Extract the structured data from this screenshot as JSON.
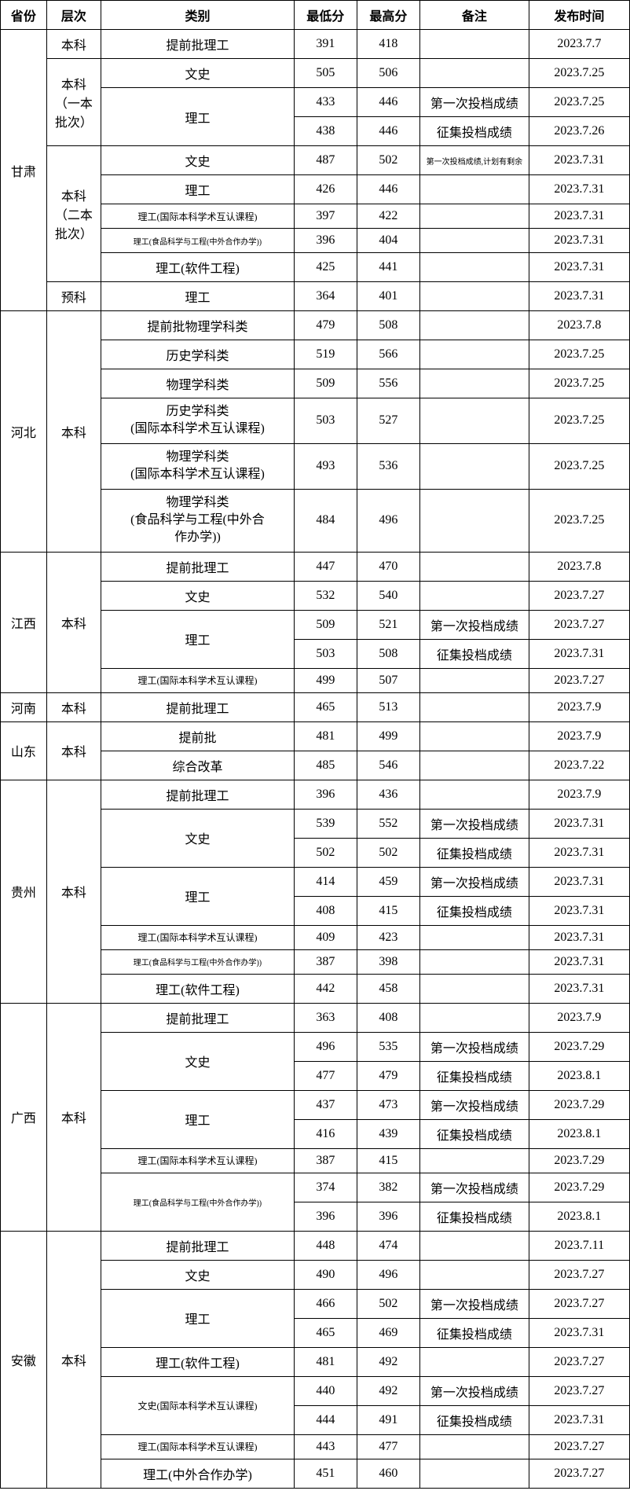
{
  "headers": {
    "province": "省份",
    "level": "层次",
    "category": "类别",
    "min": "最低分",
    "max": "最高分",
    "remark": "备注",
    "date": "发布时间"
  },
  "provinces": [
    {
      "name": "甘肃",
      "levels": [
        {
          "name": "本科",
          "rows": [
            {
              "category": "提前批理工",
              "min": "391",
              "max": "418",
              "remark": "",
              "date": "2023.7.7"
            }
          ]
        },
        {
          "name": "本科\n（一本\n批次）",
          "rows": [
            {
              "category": "文史",
              "min": "505",
              "max": "506",
              "remark": "",
              "date": "2023.7.25"
            },
            {
              "category": "理工",
              "categoryRowspan": 2,
              "min": "433",
              "max": "446",
              "remark": "第一次投档成绩",
              "date": "2023.7.25"
            },
            {
              "min": "438",
              "max": "446",
              "remark": "征集投档成绩",
              "date": "2023.7.26"
            }
          ]
        },
        {
          "name": "本科\n（二本\n批次）",
          "rows": [
            {
              "category": "文史",
              "min": "487",
              "max": "502",
              "remark": "第一次投档成绩,计划有剩余",
              "remarkClass": "xsmall-text",
              "date": "2023.7.31"
            },
            {
              "category": "理工",
              "min": "426",
              "max": "446",
              "remark": "",
              "date": "2023.7.31"
            },
            {
              "category": "理工(国际本科学术互认课程)",
              "categoryClass": "small-text",
              "min": "397",
              "max": "422",
              "remark": "",
              "date": "2023.7.31"
            },
            {
              "category": "理工(食品科学与工程(中外合作办学))",
              "categoryClass": "xsmall-text",
              "min": "396",
              "max": "404",
              "remark": "",
              "date": "2023.7.31"
            },
            {
              "category": "理工(软件工程)",
              "min": "425",
              "max": "441",
              "remark": "",
              "date": "2023.7.31"
            }
          ]
        },
        {
          "name": "预科",
          "rows": [
            {
              "category": "理工",
              "min": "364",
              "max": "401",
              "remark": "",
              "date": "2023.7.31"
            }
          ]
        }
      ]
    },
    {
      "name": "河北",
      "levels": [
        {
          "name": "本科",
          "rows": [
            {
              "category": "提前批物理学科类",
              "min": "479",
              "max": "508",
              "remark": "",
              "date": "2023.7.8"
            },
            {
              "category": "历史学科类",
              "min": "519",
              "max": "566",
              "remark": "",
              "date": "2023.7.25"
            },
            {
              "category": "物理学科类",
              "min": "509",
              "max": "556",
              "remark": "",
              "date": "2023.7.25"
            },
            {
              "category": "历史学科类\n(国际本科学术互认课程)",
              "categoryClass": "multiline",
              "min": "503",
              "max": "527",
              "remark": "",
              "date": "2023.7.25"
            },
            {
              "category": "物理学科类\n(国际本科学术互认课程)",
              "categoryClass": "multiline",
              "min": "493",
              "max": "536",
              "remark": "",
              "date": "2023.7.25"
            },
            {
              "category": "物理学科类\n(食品科学与工程(中外合\n作办学))",
              "categoryClass": "multiline",
              "min": "484",
              "max": "496",
              "remark": "",
              "date": "2023.7.25"
            }
          ]
        }
      ]
    },
    {
      "name": "江西",
      "levels": [
        {
          "name": "本科",
          "rows": [
            {
              "category": "提前批理工",
              "min": "447",
              "max": "470",
              "remark": "",
              "date": "2023.7.8"
            },
            {
              "category": "文史",
              "min": "532",
              "max": "540",
              "remark": "",
              "date": "2023.7.27"
            },
            {
              "category": "理工",
              "categoryRowspan": 2,
              "min": "509",
              "max": "521",
              "remark": "第一次投档成绩",
              "date": "2023.7.27"
            },
            {
              "min": "503",
              "max": "508",
              "remark": "征集投档成绩",
              "date": "2023.7.31"
            },
            {
              "category": "理工(国际本科学术互认课程)",
              "categoryClass": "small-text",
              "min": "499",
              "max": "507",
              "remark": "",
              "date": "2023.7.27"
            }
          ]
        }
      ]
    },
    {
      "name": "河南",
      "levels": [
        {
          "name": "本科",
          "rows": [
            {
              "category": "提前批理工",
              "min": "465",
              "max": "513",
              "remark": "",
              "date": "2023.7.9"
            }
          ]
        }
      ]
    },
    {
      "name": "山东",
      "levels": [
        {
          "name": "本科",
          "rows": [
            {
              "category": "提前批",
              "min": "481",
              "max": "499",
              "remark": "",
              "date": "2023.7.9"
            },
            {
              "category": "综合改革",
              "min": "485",
              "max": "546",
              "remark": "",
              "date": "2023.7.22"
            }
          ]
        }
      ]
    },
    {
      "name": "贵州",
      "levels": [
        {
          "name": "本科",
          "rows": [
            {
              "category": "提前批理工",
              "min": "396",
              "max": "436",
              "remark": "",
              "date": "2023.7.9"
            },
            {
              "category": "文史",
              "categoryRowspan": 2,
              "min": "539",
              "max": "552",
              "remark": "第一次投档成绩",
              "date": "2023.7.31"
            },
            {
              "min": "502",
              "max": "502",
              "remark": "征集投档成绩",
              "date": "2023.7.31"
            },
            {
              "category": "理工",
              "categoryRowspan": 2,
              "min": "414",
              "max": "459",
              "remark": "第一次投档成绩",
              "date": "2023.7.31"
            },
            {
              "min": "408",
              "max": "415",
              "remark": "征集投档成绩",
              "date": "2023.7.31"
            },
            {
              "category": "理工(国际本科学术互认课程)",
              "categoryClass": "small-text",
              "min": "409",
              "max": "423",
              "remark": "",
              "date": "2023.7.31"
            },
            {
              "category": "理工(食品科学与工程(中外合作办学))",
              "categoryClass": "xsmall-text",
              "min": "387",
              "max": "398",
              "remark": "",
              "date": "2023.7.31"
            },
            {
              "category": "理工(软件工程)",
              "min": "442",
              "max": "458",
              "remark": "",
              "date": "2023.7.31"
            }
          ]
        }
      ]
    },
    {
      "name": "广西",
      "levels": [
        {
          "name": "本科",
          "rows": [
            {
              "category": "提前批理工",
              "min": "363",
              "max": "408",
              "remark": "",
              "date": "2023.7.9"
            },
            {
              "category": "文史",
              "categoryRowspan": 2,
              "min": "496",
              "max": "535",
              "remark": "第一次投档成绩",
              "date": "2023.7.29"
            },
            {
              "min": "477",
              "max": "479",
              "remark": "征集投档成绩",
              "date": "2023.8.1"
            },
            {
              "category": "理工",
              "categoryRowspan": 2,
              "min": "437",
              "max": "473",
              "remark": "第一次投档成绩",
              "date": "2023.7.29"
            },
            {
              "min": "416",
              "max": "439",
              "remark": "征集投档成绩",
              "date": "2023.8.1"
            },
            {
              "category": "理工(国际本科学术互认课程)",
              "categoryClass": "small-text",
              "min": "387",
              "max": "415",
              "remark": "",
              "date": "2023.7.29"
            },
            {
              "category": "理工(食品科学与工程(中外合作办学))",
              "categoryClass": "xsmall-text",
              "categoryRowspan": 2,
              "min": "374",
              "max": "382",
              "remark": "第一次投档成绩",
              "date": "2023.7.29"
            },
            {
              "min": "396",
              "max": "396",
              "remark": "征集投档成绩",
              "date": "2023.8.1"
            }
          ]
        }
      ]
    },
    {
      "name": "安徽",
      "levels": [
        {
          "name": "本科",
          "rows": [
            {
              "category": "提前批理工",
              "min": "448",
              "max": "474",
              "remark": "",
              "date": "2023.7.11"
            },
            {
              "category": "文史",
              "min": "490",
              "max": "496",
              "remark": "",
              "date": "2023.7.27"
            },
            {
              "category": "理工",
              "categoryRowspan": 2,
              "min": "466",
              "max": "502",
              "remark": "第一次投档成绩",
              "date": "2023.7.27"
            },
            {
              "min": "465",
              "max": "469",
              "remark": "征集投档成绩",
              "date": "2023.7.31"
            },
            {
              "category": "理工(软件工程)",
              "min": "481",
              "max": "492",
              "remark": "",
              "date": "2023.7.27"
            },
            {
              "category": "文史(国际本科学术互认课程)",
              "categoryClass": "small-text",
              "categoryRowspan": 2,
              "min": "440",
              "max": "492",
              "remark": "第一次投档成绩",
              "date": "2023.7.27"
            },
            {
              "min": "444",
              "max": "491",
              "remark": "征集投档成绩",
              "date": "2023.7.31"
            },
            {
              "category": "理工(国际本科学术互认课程)",
              "categoryClass": "small-text",
              "min": "443",
              "max": "477",
              "remark": "",
              "date": "2023.7.27"
            },
            {
              "category": "理工(中外合作办学)",
              "min": "451",
              "max": "460",
              "remark": "",
              "date": "2023.7.27"
            }
          ]
        }
      ]
    }
  ]
}
